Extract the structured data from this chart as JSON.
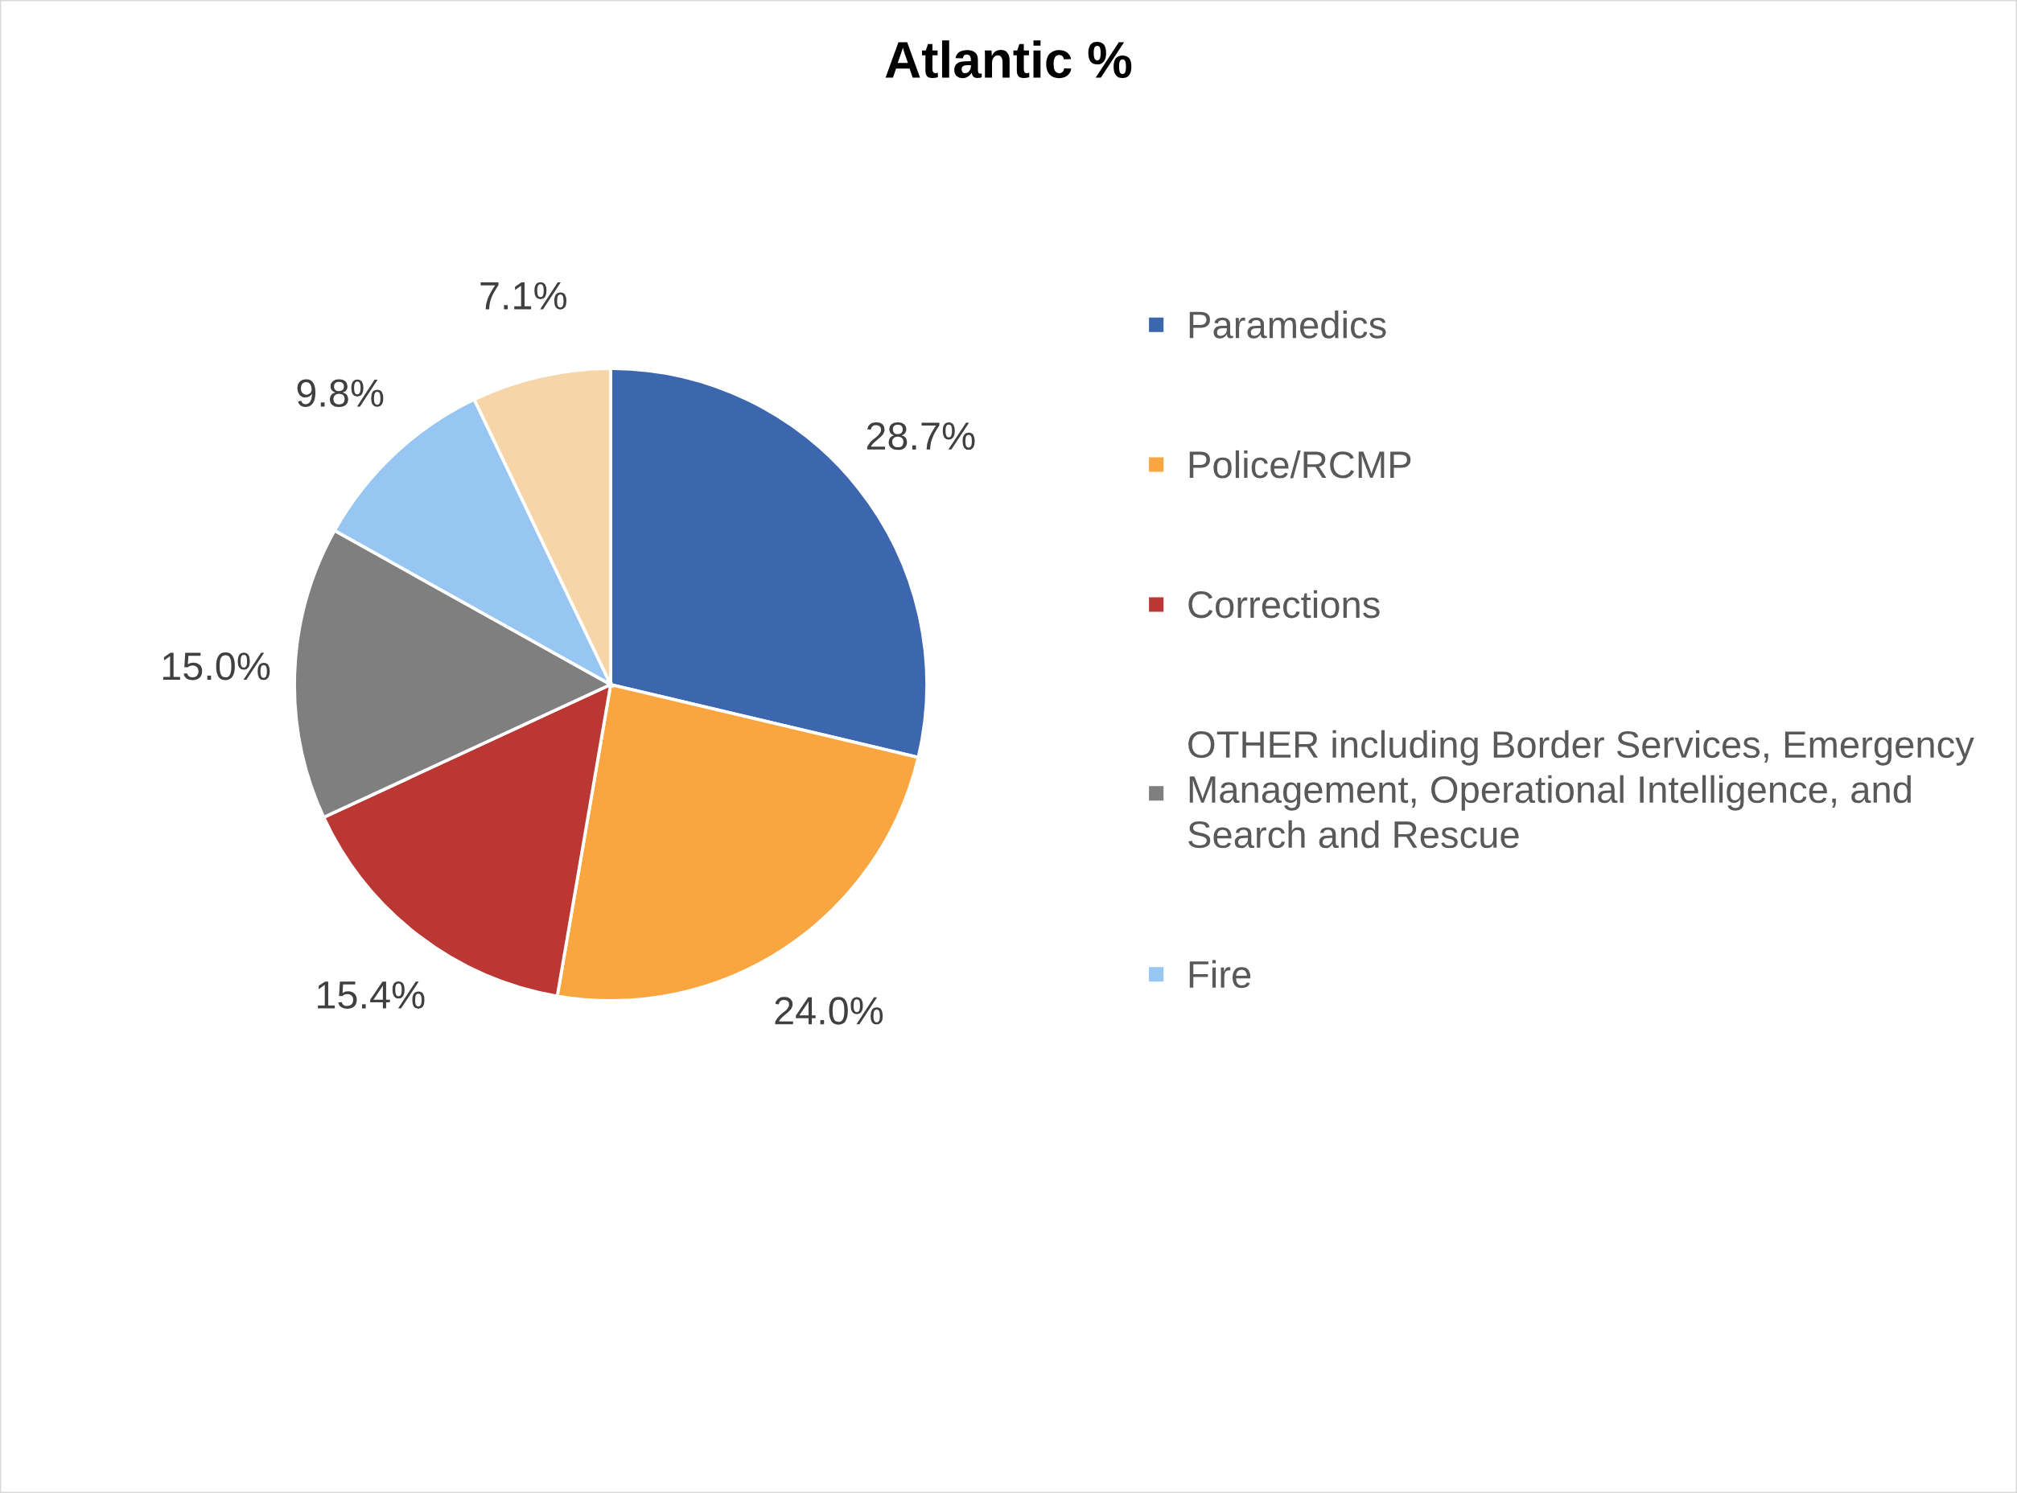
{
  "chart_data": {
    "type": "pie",
    "title": "Atlantic %",
    "categories": [
      "Paramedics",
      "Police/RCMP",
      "Corrections",
      "OTHER including Border Services, Emergency Management, Operational Intelligence, and Search and Rescue",
      "Fire",
      null
    ],
    "values": [
      28.7,
      24.0,
      15.4,
      15.0,
      9.8,
      7.1
    ],
    "colors": [
      "#3c66ae",
      "#f9a640",
      "#bb3734",
      "#807f7f",
      "#97c6f3",
      "#f6d6a8"
    ],
    "value_labels": [
      "28.7%",
      "24.0%",
      "15.4%",
      "15.0%",
      "9.8%",
      "7.1%"
    ],
    "legend": "right"
  }
}
